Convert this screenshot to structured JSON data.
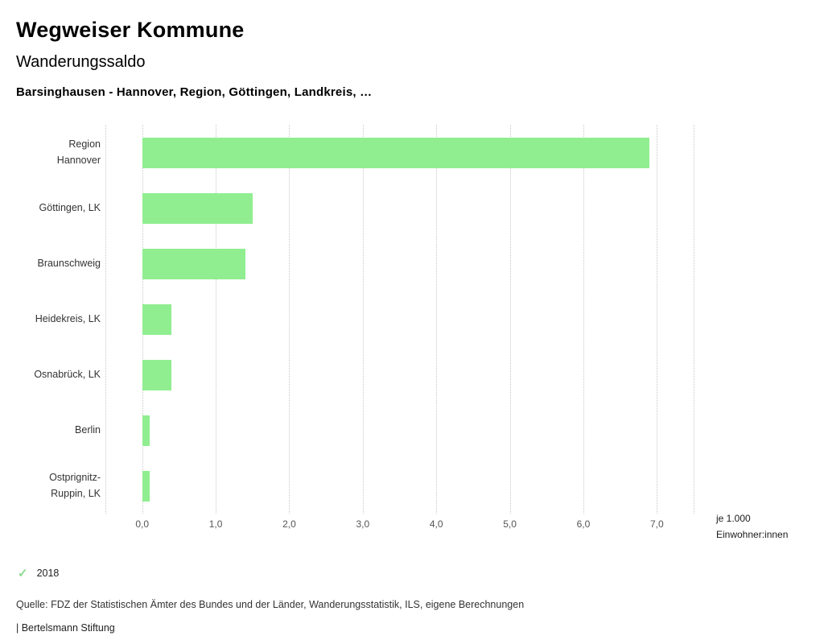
{
  "header": {
    "title": "Wegweiser Kommune",
    "subtitle": "Wanderungssaldo",
    "selection": "Barsinghausen - Hannover, Region, Göttingen, Landkreis, …"
  },
  "chart_data": {
    "type": "bar",
    "orientation": "horizontal",
    "title": "Wanderungssaldo",
    "categories": [
      "Region\nHannover",
      "Göttingen, LK",
      "Braunschweig",
      "Heidekreis, LK",
      "Osnabrück, LK",
      "Berlin",
      "Ostprignitz-\nRuppin, LK"
    ],
    "values": [
      6.9,
      1.5,
      1.4,
      0.4,
      0.4,
      0.1,
      0.1
    ],
    "x_ticks": [
      "0,0",
      "1,0",
      "2,0",
      "3,0",
      "4,0",
      "5,0",
      "6,0",
      "7,0"
    ],
    "x_tick_values": [
      0,
      1,
      2,
      3,
      4,
      5,
      6,
      7
    ],
    "xlim": [
      -0.5,
      7.5
    ],
    "grid_values": [
      -0.5,
      0,
      1,
      2,
      3,
      4,
      5,
      6,
      7,
      7.5
    ],
    "grid": "dotted-vertical",
    "bar_color": "#90ee90",
    "unit_label": "je 1.000\nEinwohner:innen"
  },
  "legend": {
    "check_icon": "✓",
    "check_color": "#8fd98f",
    "year": "2018"
  },
  "footer": {
    "source": "Quelle: FDZ der Statistischen Ämter des Bundes und der Länder, Wanderungsstatistik, ILS, eigene Berechnungen",
    "branding": "| Bertelsmann Stiftung"
  }
}
